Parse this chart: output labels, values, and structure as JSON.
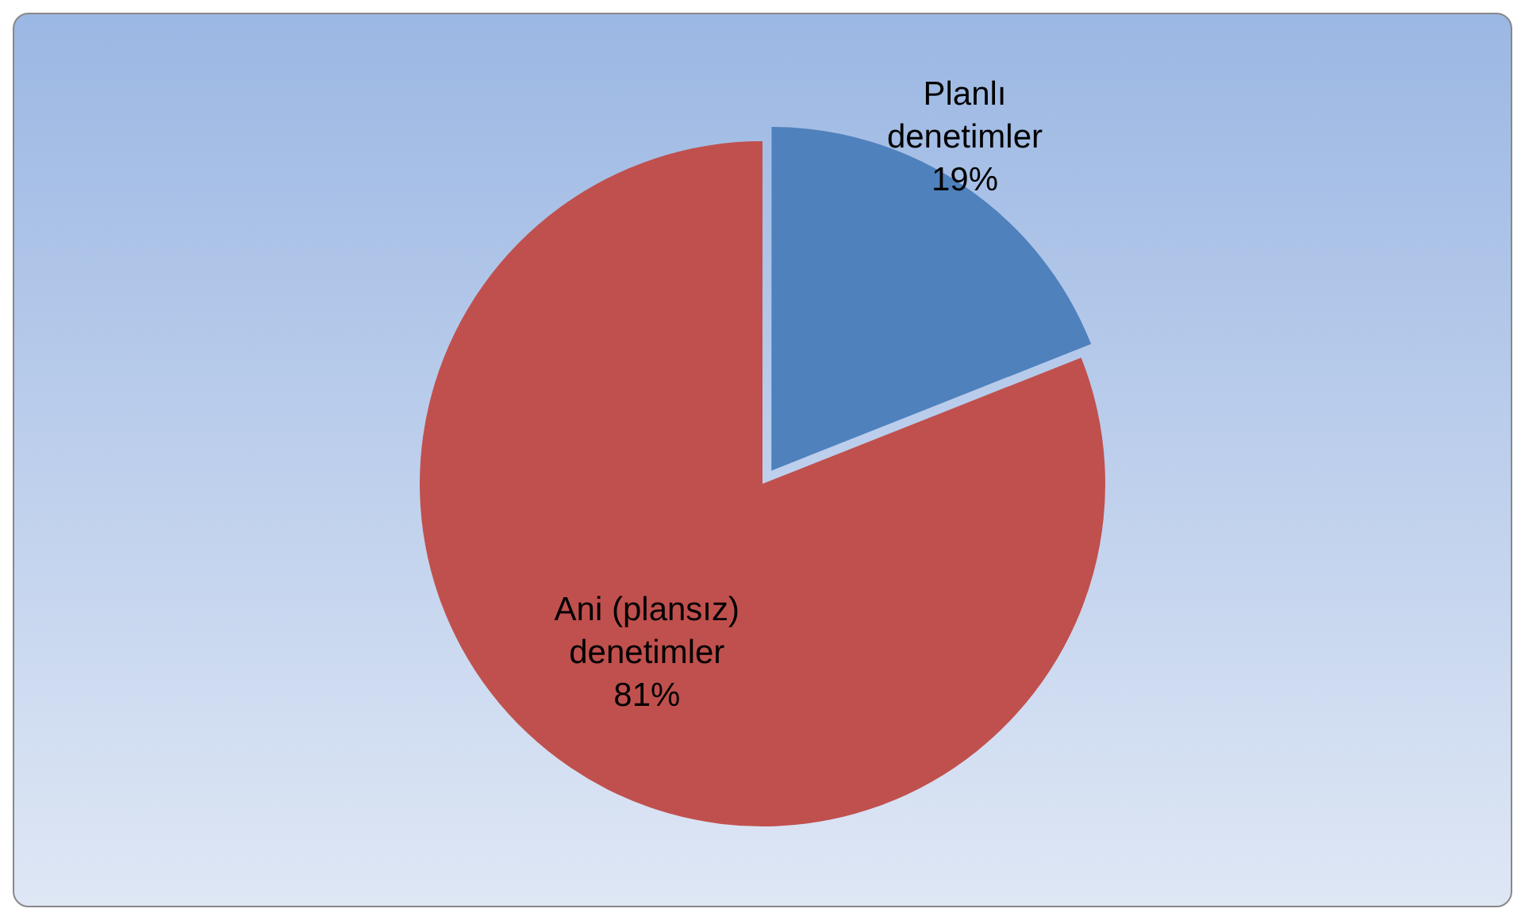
{
  "chart_data": {
    "type": "pie",
    "categories": [
      "Planlı denetimler",
      "Ani (plansız) denetimler"
    ],
    "values": [
      19,
      81
    ],
    "colors": [
      "#4f81bd",
      "#c0504d"
    ],
    "value_labels": [
      "19%",
      "81%"
    ],
    "legend": false
  }
}
